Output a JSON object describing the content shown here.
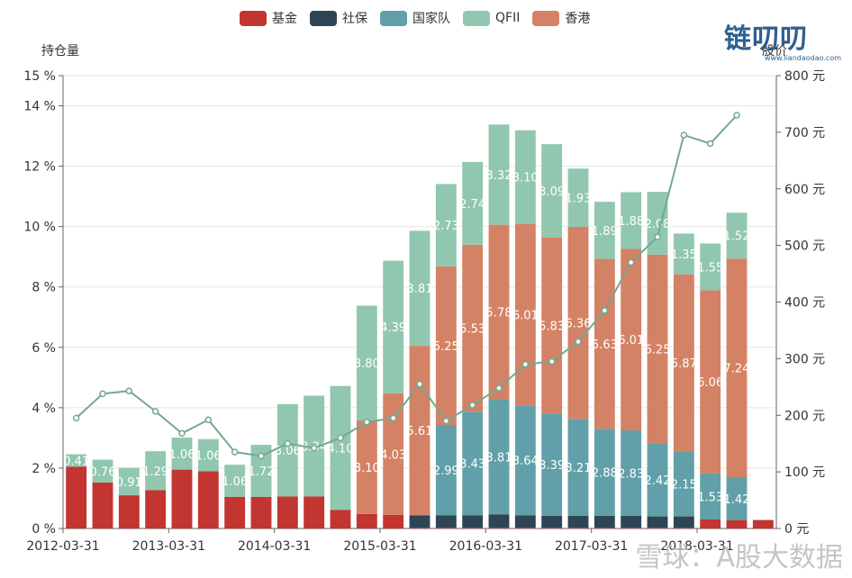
{
  "legend": [
    {
      "name": "基金",
      "color": "#c23531"
    },
    {
      "name": "社保",
      "color": "#2f4554"
    },
    {
      "name": "国家队",
      "color": "#61a0a8"
    },
    {
      "name": "QFII",
      "color": "#91c7ae"
    },
    {
      "name": "香港",
      "color": "#d48265"
    }
  ],
  "yaxis_left_name": "持仓量",
  "yaxis_right_name": "股价",
  "logo": {
    "main": "链叨叨",
    "sub": "www.liandaodao.com"
  },
  "watermark": "雪球：A股大数据",
  "chart_data": {
    "type": "bar",
    "stacked": true,
    "categories": [
      "2012-03-31",
      "2012-06-30",
      "2012-09-30",
      "2012-12-31",
      "2013-03-31",
      "2013-06-30",
      "2013-09-30",
      "2013-12-31",
      "2014-03-31",
      "2014-06-30",
      "2014-09-30",
      "2014-12-31",
      "2015-03-31",
      "2015-06-30",
      "2015-09-30",
      "2015-12-31",
      "2016-03-31",
      "2016-06-30",
      "2016-09-30",
      "2016-12-31",
      "2017-03-31",
      "2017-06-30",
      "2017-09-30",
      "2017-12-31",
      "2018-03-31",
      "2018-06-30",
      "2018-09-30"
    ],
    "x_tick_labels": [
      "2012-03-31",
      "2013-03-31",
      "2014-03-31",
      "2015-03-31",
      "2016-03-31",
      "2017-03-31",
      "2018-03-31"
    ],
    "series": [
      {
        "name": "基金",
        "values": [
          2.05,
          1.52,
          1.1,
          1.27,
          1.95,
          1.9,
          1.05,
          1.05,
          1.06,
          1.06,
          0.62,
          0.48,
          0.45,
          0.02,
          0.02,
          0.02,
          0.02,
          0.02,
          0.02,
          0.02,
          0.02,
          0.02,
          0.02,
          0.02,
          0.3,
          0.28,
          0.28
        ]
      },
      {
        "name": "社保",
        "values": [
          0,
          0,
          0,
          0,
          0,
          0,
          0,
          0,
          0,
          0,
          0,
          0,
          0,
          0.42,
          0.42,
          0.42,
          0.45,
          0.42,
          0.4,
          0.4,
          0.4,
          0.4,
          0.38,
          0.38,
          0,
          0,
          0
        ]
      },
      {
        "name": "国家队",
        "values": [
          0,
          0,
          0,
          0,
          0,
          0,
          0,
          0,
          0,
          0,
          0,
          0,
          0,
          0,
          2.99,
          3.43,
          3.81,
          3.64,
          3.39,
          3.21,
          2.88,
          2.83,
          2.42,
          2.15,
          1.53,
          1.42,
          0
        ],
        "labels": [
          "",
          "",
          "",
          "",
          "",
          "",
          "",
          "",
          "",
          "",
          "",
          "",
          "",
          "",
          "2.99",
          "3.43",
          "3.81",
          "3.64",
          "3.39",
          "3.21",
          "2.88",
          "2.83",
          "2.42",
          "2.15",
          "1.53",
          "1.42",
          ""
        ]
      },
      {
        "name": "香港",
        "values": [
          0,
          0,
          0,
          0,
          0,
          0,
          0,
          0,
          0,
          0,
          0,
          3.1,
          4.03,
          5.61,
          5.25,
          5.53,
          5.78,
          6.01,
          5.83,
          6.36,
          5.63,
          6.01,
          6.25,
          5.87,
          6.06,
          7.24,
          0
        ],
        "labels": [
          "",
          "",
          "",
          "",
          "",
          "",
          "",
          "",
          "",
          "",
          "",
          "3.10",
          "4.03",
          "5.61",
          "5.25",
          "5.53",
          "5.78",
          "6.01",
          "5.83",
          "6.36",
          "5.63",
          "6.01",
          "6.25",
          "5.87",
          "6.06",
          "7.24",
          ""
        ]
      },
      {
        "name": "QFII",
        "values": [
          0.41,
          0.76,
          0.91,
          1.29,
          1.06,
          1.06,
          1.06,
          1.72,
          3.06,
          3.34,
          4.1,
          3.8,
          4.39,
          3.81,
          2.73,
          2.74,
          3.32,
          3.1,
          3.09,
          1.93,
          1.89,
          1.88,
          2.08,
          1.35,
          1.55,
          1.52,
          0
        ],
        "labels": [
          "0.41",
          "0.76",
          "0.91",
          "1.29",
          "1.06",
          "1.06",
          "1.06",
          "1.72",
          "3.06",
          "3.34",
          "4.10",
          "3.80",
          "4.39",
          "3.81",
          "2.73",
          "2.74",
          "3.32",
          "3.10",
          "3.09",
          "1.93",
          "1.89",
          "1.88",
          "2.08",
          "1.35",
          "1.55",
          "1.52",
          ""
        ]
      }
    ],
    "line": {
      "name": "股价",
      "values": [
        195,
        238,
        243,
        207,
        168,
        192,
        135,
        128,
        150,
        142,
        160,
        188,
        195,
        255,
        190,
        218,
        248,
        290,
        295,
        330,
        385,
        470,
        515,
        695,
        680,
        730,
        null
      ]
    },
    "ylim_left": [
      0,
      15
    ],
    "yticks_left": [
      0,
      2,
      4,
      6,
      8,
      10,
      12,
      14,
      15
    ],
    "ytick_suffix_left": " %",
    "ylim_right": [
      0,
      800
    ],
    "yticks_right": [
      0,
      100,
      200,
      300,
      400,
      500,
      600,
      700,
      800
    ],
    "ytick_suffix_right": " 元",
    "grid": true
  }
}
